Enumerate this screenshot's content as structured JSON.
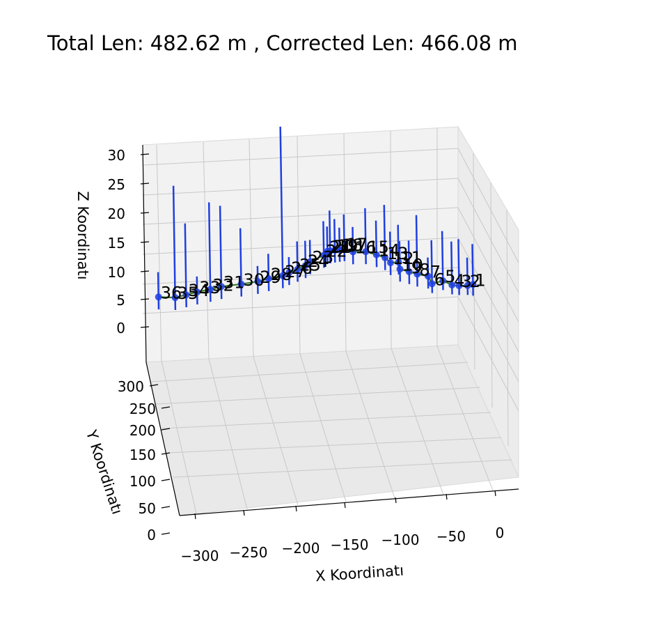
{
  "chart_data": {
    "type": "scatter",
    "projection": "3d",
    "title": "Total Len: 482.62 m , Corrected Len: 466.08 m",
    "xlabel": "X Koordinatı",
    "ylabel": "Y Koordinatı",
    "zlabel": "Z Koordinatı",
    "xticks": [
      "−300",
      "−250",
      "−200",
      "−150",
      "−100",
      "−50",
      "0"
    ],
    "yticks": [
      "0",
      "50",
      "100",
      "150",
      "200",
      "250",
      "300"
    ],
    "zticks": [
      "0",
      "5",
      "10",
      "15",
      "20",
      "25",
      "30"
    ],
    "xlim": [
      -320,
      15
    ],
    "ylim": [
      0,
      330
    ],
    "zlim": [
      -5,
      30
    ],
    "grid": true,
    "colors": {
      "points": "#1f3fe0",
      "path": "#3a7d1e",
      "pane": "#f2f2f2",
      "grid": "#c8c8c8"
    },
    "stations": [
      {
        "label": "1",
        "x": -2,
        "y": 305,
        "z": 5.0,
        "up": 6.5,
        "down": 1.8
      },
      {
        "label": "2",
        "x": -8,
        "y": 290,
        "z": 5.0,
        "up": 4.5,
        "down": 1.5
      },
      {
        "label": "3",
        "x": -16,
        "y": 285,
        "z": 5.0,
        "up": 7.5,
        "down": 1.5
      },
      {
        "label": "4",
        "x": -22,
        "y": 290,
        "z": 5.0,
        "up": 7.0,
        "down": 1.5
      },
      {
        "label": "5",
        "x": -32,
        "y": 265,
        "z": 6.0,
        "up": 8.0,
        "down": 1.5
      },
      {
        "label": "6",
        "x": -42,
        "y": 262,
        "z": 5.5,
        "up": 7.0,
        "down": 1.5
      },
      {
        "label": "7",
        "x": -47,
        "y": 242,
        "z": 7.0,
        "up": 3.0,
        "down": 2.0
      },
      {
        "label": "8",
        "x": -58,
        "y": 225,
        "z": 7.5,
        "up": 9.5,
        "down": 2.0
      },
      {
        "label": "9",
        "x": -66,
        "y": 215,
        "z": 8.0,
        "up": 5.0,
        "down": 2.0
      },
      {
        "label": "10",
        "x": -75,
        "y": 205,
        "z": 8.5,
        "up": 4.5,
        "down": 2.0
      },
      {
        "label": "11",
        "x": -78,
        "y": 180,
        "z": 10.0,
        "up": 6.0,
        "down": 2.0
      },
      {
        "label": "12",
        "x": -86,
        "y": 170,
        "z": 10.0,
        "up": 5.0,
        "down": 2.0
      },
      {
        "label": "13",
        "x": -92,
        "y": 155,
        "z": 11.0,
        "up": 8.5,
        "down": 2.0
      },
      {
        "label": "14",
        "x": -100,
        "y": 150,
        "z": 11.5,
        "up": 5.5,
        "down": 2.0
      },
      {
        "label": "15",
        "x": -110,
        "y": 145,
        "z": 12.0,
        "up": 7.0,
        "down": 2.0
      },
      {
        "label": "16",
        "x": -122,
        "y": 138,
        "z": 12.0,
        "up": 4.0,
        "down": 2.0
      },
      {
        "label": "17",
        "x": -130,
        "y": 135,
        "z": 12.5,
        "up": 5.5,
        "down": 2.0
      },
      {
        "label": "18",
        "x": -135,
        "y": 125,
        "z": 12.5,
        "up": 3.5,
        "down": 2.0
      },
      {
        "label": "19",
        "x": -140,
        "y": 115,
        "z": 12.5,
        "up": 5.0,
        "down": 2.0
      },
      {
        "label": "20",
        "x": -145,
        "y": 105,
        "z": 12.5,
        "up": 6.5,
        "down": 2.0
      },
      {
        "label": "21",
        "x": -148,
        "y": 98,
        "z": 12.5,
        "up": 4.0,
        "down": 2.0
      },
      {
        "label": "22",
        "x": -152,
        "y": 88,
        "z": 12.0,
        "up": 5.5,
        "down": 2.0
      },
      {
        "label": "23",
        "x": -165,
        "y": 80,
        "z": 11.0,
        "up": 3.5,
        "down": 2.0
      },
      {
        "label": "24",
        "x": -170,
        "y": 70,
        "z": 10.5,
        "up": 4.0,
        "down": 2.0
      },
      {
        "label": "25",
        "x": -178,
        "y": 60,
        "z": 10.0,
        "up": 4.5,
        "down": 2.0
      },
      {
        "label": "26",
        "x": -186,
        "y": 55,
        "z": 9.5,
        "up": 2.5,
        "down": 2.0
      },
      {
        "label": "27",
        "x": -192,
        "y": 52,
        "z": 9.0,
        "up": 24.0,
        "down": 2.0
      },
      {
        "label": "28",
        "x": -205,
        "y": 48,
        "z": 8.5,
        "up": 4.0,
        "down": 2.0
      },
      {
        "label": "29",
        "x": -215,
        "y": 46,
        "z": 8.0,
        "up": 2.5,
        "down": 2.0
      },
      {
        "label": "30",
        "x": -230,
        "y": 45,
        "z": 7.5,
        "up": 9.0,
        "down": 2.0
      },
      {
        "label": "31",
        "x": -248,
        "y": 44,
        "z": 7.0,
        "up": 13.0,
        "down": 2.0
      },
      {
        "label": "32",
        "x": -258,
        "y": 43,
        "z": 6.5,
        "up": 14.0,
        "down": 2.0
      },
      {
        "label": "33",
        "x": -270,
        "y": 42,
        "z": 6.0,
        "up": 2.5,
        "down": 2.0
      },
      {
        "label": "34",
        "x": -280,
        "y": 41,
        "z": 5.5,
        "up": 11.5,
        "down": 2.0
      },
      {
        "label": "35",
        "x": -290,
        "y": 40,
        "z": 5.0,
        "up": 18.0,
        "down": 2.0
      },
      {
        "label": "36",
        "x": -305,
        "y": 40,
        "z": 5.0,
        "up": 4.0,
        "down": 2.0
      }
    ]
  }
}
